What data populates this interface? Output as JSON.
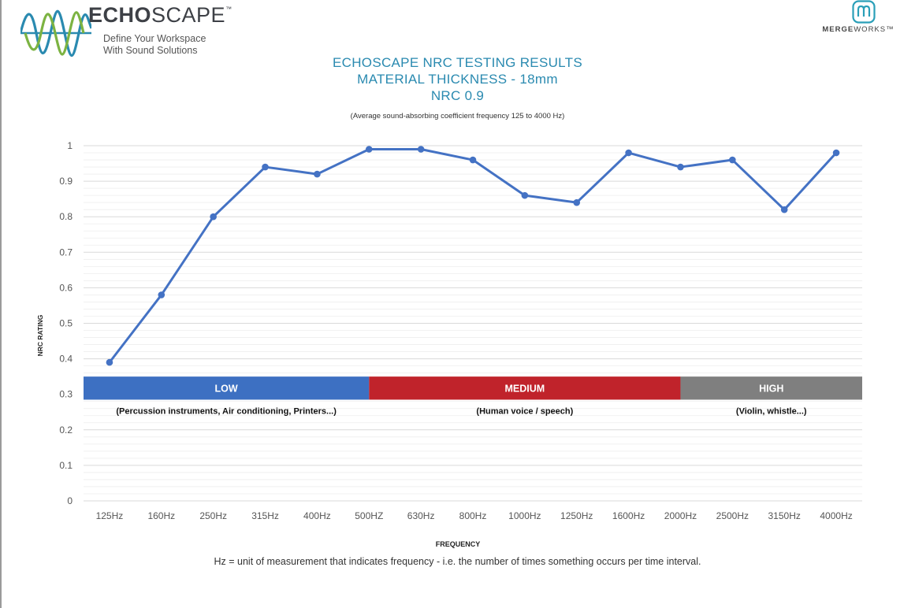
{
  "header": {
    "brand_bold": "ECHO",
    "brand_rest": "SCAPE",
    "brand_tm": "™",
    "tagline_line1": "Define Your Workspace",
    "tagline_line2": "With Sound Solutions",
    "partner_bold": "MERGE",
    "partner_rest": "WORKS",
    "partner_tm": "™"
  },
  "chart_data": {
    "type": "line",
    "title_lines": [
      "ECHOSCAPE NRC TESTING RESULTS",
      "MATERIAL THICKNESS - 18mm",
      "NRC  0.9"
    ],
    "subtitle": "(Average sound-absorbing coefficient frequency 125 to 4000 Hz)",
    "xlabel": "FREQUENCY",
    "ylabel": "NRC RATING",
    "categories": [
      "125Hz",
      "160Hz",
      "250Hz",
      "315Hz",
      "400Hz",
      "500HZ",
      "630Hz",
      "800Hz",
      "1000Hz",
      "1250Hz",
      "1600Hz",
      "2000Hz",
      "2500Hz",
      "3150Hz",
      "4000Hz"
    ],
    "series": [
      {
        "name": "NRC",
        "color": "#4472c4",
        "values": [
          0.39,
          0.58,
          0.8,
          0.94,
          0.92,
          0.99,
          0.99,
          0.96,
          0.86,
          0.84,
          0.98,
          0.94,
          0.96,
          0.82,
          0.98
        ]
      }
    ],
    "ylim": [
      0,
      1
    ],
    "yticks": [
      "0",
      "0.1",
      "0.2",
      "0.3",
      "0.4",
      "0.5",
      "0.6",
      "0.7",
      "0.8",
      "0.9",
      "1"
    ],
    "grid": true,
    "bands": [
      {
        "label": "LOW",
        "note": "(Percussion instruments, Air conditioning, Printers...)",
        "color": "#3d70c2",
        "start": "125Hz",
        "end": "500HZ"
      },
      {
        "label": "MEDIUM",
        "note": "(Human voice / speech)",
        "color": "#c0232b",
        "start": "500HZ",
        "end": "2000Hz"
      },
      {
        "label": "HIGH",
        "note": "(Violin, whistle...)",
        "color": "#7f7f7f",
        "start": "2000Hz",
        "end": "4000Hz"
      }
    ],
    "band_range": [
      0.285,
      0.35
    ]
  },
  "footnote": "Hz = unit of measurement that indicates frequency - i.e. the number of times something occurs per time interval."
}
